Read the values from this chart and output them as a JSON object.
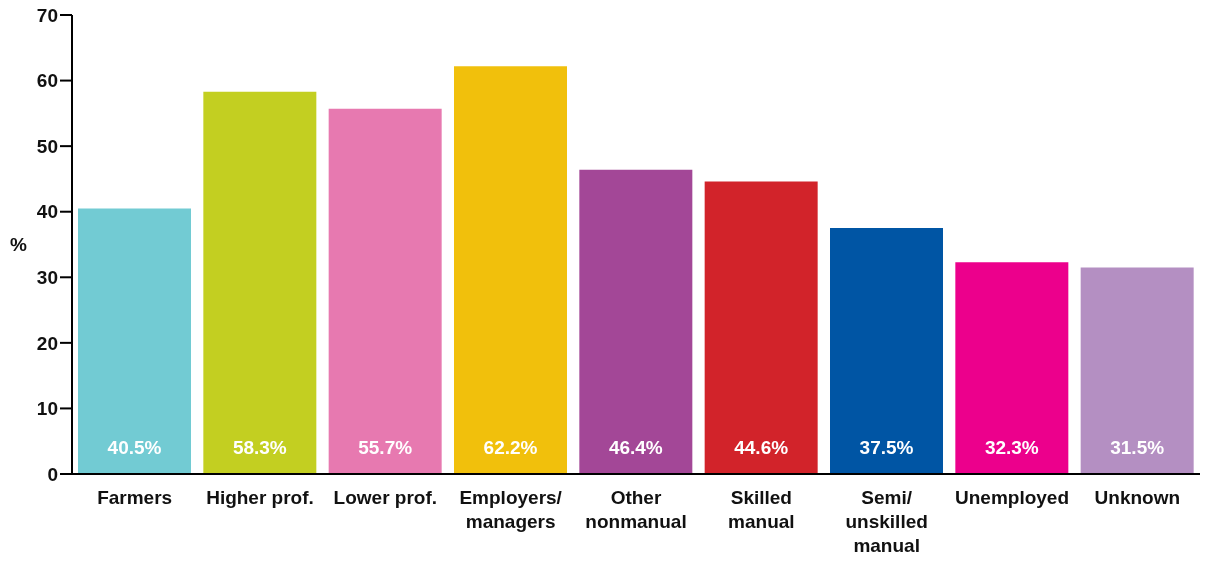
{
  "chart_data": {
    "type": "bar",
    "ylabel": "%",
    "categories": [
      "Farmers",
      "Higher prof.",
      "Lower prof.",
      "Employers/ managers",
      "Other nonmanual",
      "Skilled manual",
      "Semi/ unskilled manual",
      "Unemployed",
      "Unknown"
    ],
    "values": [
      40.5,
      58.3,
      55.7,
      62.2,
      46.4,
      44.6,
      37.5,
      32.3,
      31.5
    ],
    "value_labels": [
      "40.5%",
      "58.3%",
      "55.7%",
      "62.2%",
      "46.4%",
      "44.6%",
      "37.5%",
      "32.3%",
      "31.5%"
    ],
    "colors": [
      "#72cbd3",
      "#c3cf21",
      "#e779b0",
      "#f1c00c",
      "#a34797",
      "#d2232a",
      "#0055a4",
      "#ec008c",
      "#b48fc2"
    ],
    "ylim": [
      0,
      70
    ],
    "yticks": [
      0,
      10,
      20,
      30,
      40,
      50,
      60,
      70
    ],
    "grid": false,
    "legend": false
  }
}
